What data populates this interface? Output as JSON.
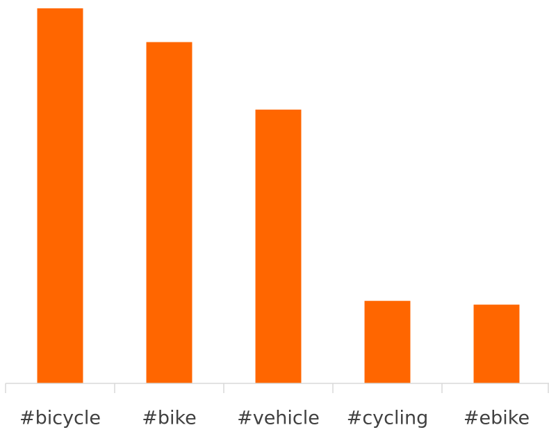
{
  "chart_data": {
    "type": "bar",
    "categories": [
      "#bicycle",
      "#bike",
      "#vehicle",
      "#cycling",
      "#ebike"
    ],
    "values": [
      100,
      91,
      73,
      22,
      21
    ],
    "color": "#ff6600",
    "ylim": [
      0,
      100
    ]
  }
}
